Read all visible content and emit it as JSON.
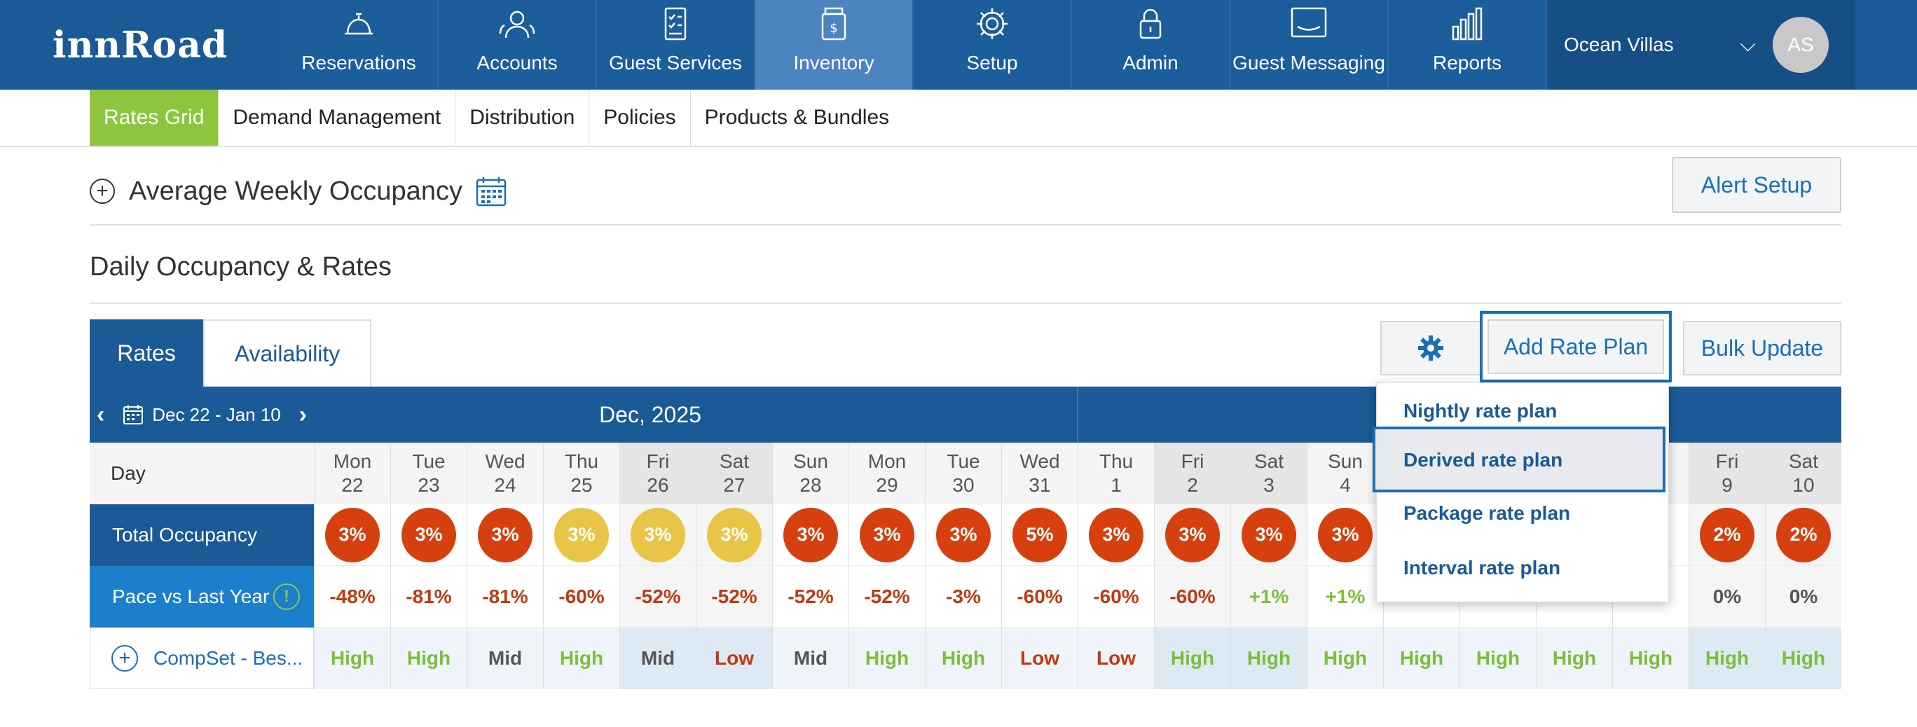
{
  "header": {
    "logo": "innRoad",
    "nav": [
      {
        "label": "Reservations",
        "icon": "bell-icon"
      },
      {
        "label": "Accounts",
        "icon": "users-icon"
      },
      {
        "label": "Guest Services",
        "icon": "checklist-icon"
      },
      {
        "label": "Inventory",
        "icon": "inventory-jar-icon",
        "active": true
      },
      {
        "label": "Setup",
        "icon": "gear-icon"
      },
      {
        "label": "Admin",
        "icon": "lock-icon"
      },
      {
        "label": "Guest Messaging",
        "icon": "message-icon"
      },
      {
        "label": "Reports",
        "icon": "bar-chart-icon"
      }
    ],
    "property": "Ocean Villas",
    "avatar": "AS"
  },
  "subnav": [
    {
      "label": "Rates Grid",
      "active": true
    },
    {
      "label": "Demand Management"
    },
    {
      "label": "Distribution"
    },
    {
      "label": "Policies"
    },
    {
      "label": "Products & Bundles"
    }
  ],
  "avg_weekly": {
    "title": "Average Weekly Occupancy"
  },
  "alert_setup": "Alert Setup",
  "daily_title": "Daily Occupancy & Rates",
  "tabs": {
    "rates": "Rates",
    "availability": "Availability"
  },
  "toolbar": {
    "add_rate_plan": "Add Rate Plan",
    "bulk_update": "Bulk Update"
  },
  "grid": {
    "date_range": "Dec 22 - Jan 10",
    "month_dec": "Dec, 2025",
    "labels": {
      "day": "Day",
      "occupancy": "Total Occupancy",
      "pace": "Pace vs Last Year",
      "compset": "CompSet - Bes..."
    },
    "days": [
      {
        "dow": "Mon",
        "num": "22",
        "occ": "3%",
        "occ_level": "red",
        "pace": "-48%",
        "pace_dir": "neg",
        "comp": "High",
        "comp_level": "high",
        "weekend": false
      },
      {
        "dow": "Tue",
        "num": "23",
        "occ": "3%",
        "occ_level": "red",
        "pace": "-81%",
        "pace_dir": "neg",
        "comp": "High",
        "comp_level": "high",
        "weekend": false
      },
      {
        "dow": "Wed",
        "num": "24",
        "occ": "3%",
        "occ_level": "red",
        "pace": "-81%",
        "pace_dir": "neg",
        "comp": "Mid",
        "comp_level": "mid",
        "weekend": false
      },
      {
        "dow": "Thu",
        "num": "25",
        "occ": "3%",
        "occ_level": "yellow",
        "pace": "-60%",
        "pace_dir": "neg",
        "comp": "High",
        "comp_level": "high",
        "weekend": false
      },
      {
        "dow": "Fri",
        "num": "26",
        "occ": "3%",
        "occ_level": "yellow",
        "pace": "-52%",
        "pace_dir": "neg",
        "comp": "Mid",
        "comp_level": "mid",
        "weekend": true
      },
      {
        "dow": "Sat",
        "num": "27",
        "occ": "3%",
        "occ_level": "yellow",
        "pace": "-52%",
        "pace_dir": "neg",
        "comp": "Low",
        "comp_level": "low",
        "weekend": true
      },
      {
        "dow": "Sun",
        "num": "28",
        "occ": "3%",
        "occ_level": "red",
        "pace": "-52%",
        "pace_dir": "neg",
        "comp": "Mid",
        "comp_level": "mid",
        "weekend": false
      },
      {
        "dow": "Mon",
        "num": "29",
        "occ": "3%",
        "occ_level": "red",
        "pace": "-52%",
        "pace_dir": "neg",
        "comp": "High",
        "comp_level": "high",
        "weekend": false
      },
      {
        "dow": "Tue",
        "num": "30",
        "occ": "3%",
        "occ_level": "red",
        "pace": "-3%",
        "pace_dir": "neg",
        "comp": "High",
        "comp_level": "high",
        "weekend": false
      },
      {
        "dow": "Wed",
        "num": "31",
        "occ": "5%",
        "occ_level": "red",
        "pace": "-60%",
        "pace_dir": "neg",
        "comp": "Low",
        "comp_level": "low",
        "weekend": false
      },
      {
        "dow": "Thu",
        "num": "1",
        "occ": "3%",
        "occ_level": "red",
        "pace": "-60%",
        "pace_dir": "neg",
        "comp": "Low",
        "comp_level": "low",
        "weekend": false
      },
      {
        "dow": "Fri",
        "num": "2",
        "occ": "3%",
        "occ_level": "red",
        "pace": "-60%",
        "pace_dir": "neg",
        "comp": "High",
        "comp_level": "high",
        "weekend": true
      },
      {
        "dow": "Sat",
        "num": "3",
        "occ": "3%",
        "occ_level": "red",
        "pace": "+1%",
        "pace_dir": "pos",
        "comp": "High",
        "comp_level": "high",
        "weekend": true
      },
      {
        "dow": "Sun",
        "num": "4",
        "occ": "3%",
        "occ_level": "red",
        "pace": "+1%",
        "pace_dir": "pos",
        "comp": "High",
        "comp_level": "high",
        "weekend": false
      },
      {
        "dow": "",
        "num": "",
        "occ": "",
        "occ_level": "none",
        "pace": "",
        "pace_dir": "pos",
        "comp": "High",
        "comp_level": "high",
        "weekend": false
      },
      {
        "dow": "",
        "num": "",
        "occ": "",
        "occ_level": "none",
        "pace": "",
        "pace_dir": "pos",
        "comp": "High",
        "comp_level": "high",
        "weekend": false
      },
      {
        "dow": "",
        "num": "",
        "occ": "",
        "occ_level": "none",
        "pace": "",
        "pace_dir": "pos",
        "comp": "High",
        "comp_level": "high",
        "weekend": false
      },
      {
        "dow": "",
        "num": "",
        "occ": "",
        "occ_level": "none",
        "pace": "",
        "pace_dir": "zero",
        "comp": "High",
        "comp_level": "high",
        "weekend": false
      },
      {
        "dow": "Fri",
        "num": "9",
        "occ": "2%",
        "occ_level": "red",
        "pace": "0%",
        "pace_dir": "zero",
        "comp": "High",
        "comp_level": "high",
        "weekend": true
      },
      {
        "dow": "Sat",
        "num": "10",
        "occ": "2%",
        "occ_level": "red",
        "pace": "0%",
        "pace_dir": "zero",
        "comp": "High",
        "comp_level": "high",
        "weekend": true
      }
    ]
  },
  "dropdown": {
    "items": [
      "Nightly rate plan",
      "Derived rate plan",
      "Package rate plan",
      "Interval rate plan"
    ],
    "highlighted": "Derived rate plan"
  },
  "colors": {
    "header_bg": "#1a5a96",
    "active_nav": "#4a85c0",
    "subnav_active": "#8cc63f",
    "occ_red": "#d6400e",
    "occ_yellow": "#e8c547",
    "neg": "#c0390f",
    "pos": "#7bbf3a",
    "mid": "#555555",
    "high": "#7bbf3a",
    "low": "#c0390f"
  }
}
